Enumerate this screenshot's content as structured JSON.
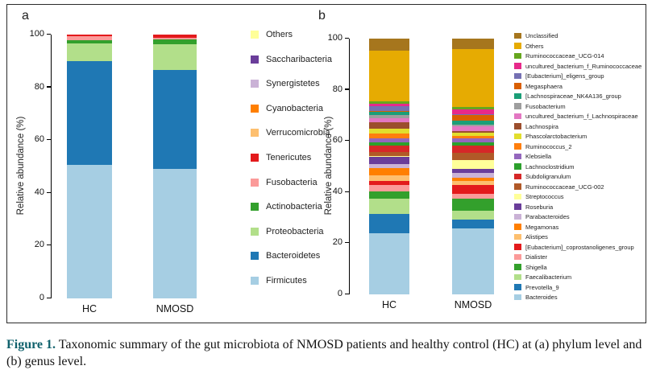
{
  "figure": {
    "caption_label": "Figure 1.",
    "caption_text": "Taxonomic summary of the gut microbiota of NMOSD patients and healthy control (HC) at (a) phylum level and (b) genus level."
  },
  "chart_data": [
    {
      "type": "bar",
      "stacked": true,
      "panel_label": "a",
      "taxonomic_level": "phylum",
      "ylabel": "Relative abundance (%)",
      "ylim": [
        0,
        100
      ],
      "yticks": [
        0,
        20,
        40,
        60,
        80,
        100
      ],
      "categories": [
        "HC",
        "NMOSD"
      ],
      "legend_position": "right",
      "legend_note": "legend order top-to-bottom matches stack top-to-bottom",
      "series": [
        {
          "name": "Others",
          "color": "#FFFF99",
          "values": [
            0,
            0
          ]
        },
        {
          "name": "Saccharibacteria",
          "color": "#6A3D9A",
          "values": [
            0,
            0
          ]
        },
        {
          "name": "Synergistetes",
          "color": "#CAB2D6",
          "values": [
            0,
            0
          ]
        },
        {
          "name": "Cyanobacteria",
          "color": "#FF7F00",
          "values": [
            0,
            0
          ]
        },
        {
          "name": "Verrucomicrobia",
          "color": "#FDBF6F",
          "values": [
            0,
            0
          ]
        },
        {
          "name": "Tenericutes",
          "color": "#E31A1C",
          "values": [
            0.7,
            1.2
          ]
        },
        {
          "name": "Fusobacteria",
          "color": "#FB9A99",
          "values": [
            1.4,
            0.6
          ]
        },
        {
          "name": "Actinobacteria",
          "color": "#33A02C",
          "values": [
            1.4,
            1.9
          ]
        },
        {
          "name": "Proteobacteria",
          "color": "#B2DF8A",
          "values": [
            6.5,
            9.7
          ]
        },
        {
          "name": "Bacteroidetes",
          "color": "#1F78B4",
          "values": [
            39.5,
            37.6
          ]
        },
        {
          "name": "Firmicutes",
          "color": "#A6CEE3",
          "values": [
            50.5,
            49.0
          ]
        }
      ]
    },
    {
      "type": "bar",
      "stacked": true,
      "panel_label": "b",
      "taxonomic_level": "genus",
      "ylabel": "Relative abundance (%)",
      "ylim": [
        0,
        100
      ],
      "yticks": [
        0,
        20,
        40,
        60,
        80,
        100
      ],
      "categories": [
        "HC",
        "NMOSD"
      ],
      "legend_position": "right",
      "legend_note": "legend order top-to-bottom matches stack top-to-bottom",
      "series": [
        {
          "name": "Unclassified",
          "color": "#A6761D",
          "values": [
            4.8,
            4.2
          ]
        },
        {
          "name": "Others",
          "color": "#E6AB02",
          "values": [
            19.6,
            22.6
          ]
        },
        {
          "name": "Ruminococcaceae_UCG-014",
          "color": "#66A61E",
          "values": [
            1.0,
            0.8
          ]
        },
        {
          "name": "uncultured_bacterium_f_Ruminococcaceae",
          "color": "#E7298A",
          "values": [
            1.1,
            2.1
          ]
        },
        {
          "name": "[Eubacterium]_eligens_group",
          "color": "#7570B3",
          "values": [
            1.8,
            0.2
          ]
        },
        {
          "name": "Megasphaera",
          "color": "#D95F02",
          "values": [
            0.2,
            2.1
          ]
        },
        {
          "name": "[Lachnospiraceae_NK4A136_group",
          "color": "#1B9E77",
          "values": [
            1.4,
            1.6
          ]
        },
        {
          "name": "Fusobacterium",
          "color": "#9E9E9E",
          "values": [
            1.3,
            0.7
          ]
        },
        {
          "name": "uncultured_bacterium_f_Lachnospiraceae",
          "color": "#E377C2",
          "values": [
            1.5,
            1.9
          ]
        },
        {
          "name": "Lachnospira",
          "color": "#9C4E2D",
          "values": [
            2.4,
            0.5
          ]
        },
        {
          "name": "Phascolarctobacterium",
          "color": "#E2DE2D",
          "values": [
            1.9,
            1.5
          ]
        },
        {
          "name": "Ruminococcus_2",
          "color": "#FF7F0E",
          "values": [
            2.0,
            0.8
          ]
        },
        {
          "name": "Klebsiella",
          "color": "#9467BD",
          "values": [
            1.5,
            1.6
          ]
        },
        {
          "name": "Lachnoclostridium",
          "color": "#2CA02C",
          "values": [
            1.5,
            1.4
          ]
        },
        {
          "name": "Subdoligranulum",
          "color": "#D62728",
          "values": [
            2.3,
            2.8
          ]
        },
        {
          "name": "Ruminococcaceae_UCG-002",
          "color": "#B15928",
          "values": [
            1.8,
            2.6
          ]
        },
        {
          "name": "Streptococcus",
          "color": "#FFFF99",
          "values": [
            0.3,
            3.5
          ]
        },
        {
          "name": "Roseburia",
          "color": "#6A3D9A",
          "values": [
            2.6,
            1.6
          ]
        },
        {
          "name": "Parabacteroides",
          "color": "#CAB2D6",
          "values": [
            1.6,
            1.8
          ]
        },
        {
          "name": "Megamonas",
          "color": "#FF7F00",
          "values": [
            3.0,
            1.3
          ]
        },
        {
          "name": "Alistipes",
          "color": "#FDBF6F",
          "values": [
            2.1,
            1.8
          ]
        },
        {
          "name": "[Eubacterium]_coprostanoligenes_group",
          "color": "#E31A1C",
          "values": [
            1.7,
            3.4
          ]
        },
        {
          "name": "Dialister",
          "color": "#FB9A99",
          "values": [
            2.3,
            1.7
          ]
        },
        {
          "name": "Shigella",
          "color": "#33A02C",
          "values": [
            2.9,
            5.0
          ]
        },
        {
          "name": "Faecalibacterium",
          "color": "#B2DF8A",
          "values": [
            6.0,
            3.2
          ]
        },
        {
          "name": "Prevotella_9",
          "color": "#1F78B4",
          "values": [
            7.7,
            3.6
          ]
        },
        {
          "name": "Bacteroides",
          "color": "#A6CEE3",
          "values": [
            23.7,
            25.7
          ]
        }
      ]
    }
  ]
}
